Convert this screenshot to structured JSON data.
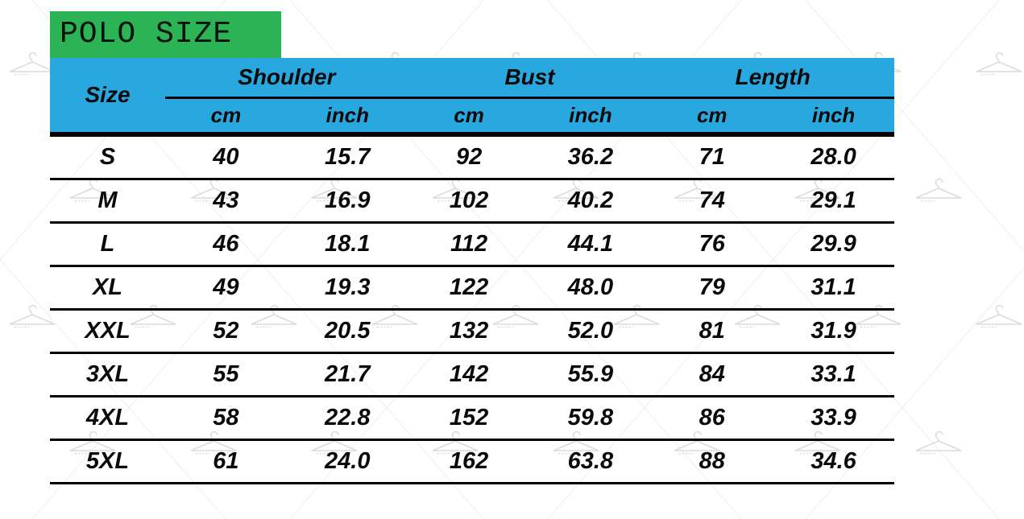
{
  "title": "POLO SIZE",
  "colors": {
    "title_bg": "#2bb356",
    "header_bg": "#29a8e0",
    "text": "#0a0a0a",
    "line": "#000000",
    "watermark": "#cdd1d6"
  },
  "table": {
    "size_header": "Size",
    "groups": [
      {
        "label": "Shoulder",
        "units": [
          "cm",
          "inch"
        ]
      },
      {
        "label": "Bust",
        "units": [
          "cm",
          "inch"
        ]
      },
      {
        "label": "Length",
        "units": [
          "cm",
          "inch"
        ]
      }
    ],
    "rows": [
      {
        "size": "S",
        "values": [
          "40",
          "15.7",
          "92",
          "36.2",
          "71",
          "28.0"
        ]
      },
      {
        "size": "M",
        "values": [
          "43",
          "16.9",
          "102",
          "40.2",
          "74",
          "29.1"
        ]
      },
      {
        "size": "L",
        "values": [
          "46",
          "18.1",
          "112",
          "44.1",
          "76",
          "29.9"
        ]
      },
      {
        "size": "XL",
        "values": [
          "49",
          "19.3",
          "122",
          "48.0",
          "79",
          "31.1"
        ]
      },
      {
        "size": "XXL",
        "values": [
          "52",
          "20.5",
          "132",
          "52.0",
          "81",
          "31.9"
        ]
      },
      {
        "size": "3XL",
        "values": [
          "55",
          "21.7",
          "142",
          "55.9",
          "84",
          "33.1"
        ]
      },
      {
        "size": "4XL",
        "values": [
          "58",
          "22.8",
          "152",
          "59.8",
          "86",
          "33.9"
        ]
      },
      {
        "size": "5XL",
        "values": [
          "61",
          "24.0",
          "162",
          "63.8",
          "88",
          "34.6"
        ]
      }
    ]
  }
}
